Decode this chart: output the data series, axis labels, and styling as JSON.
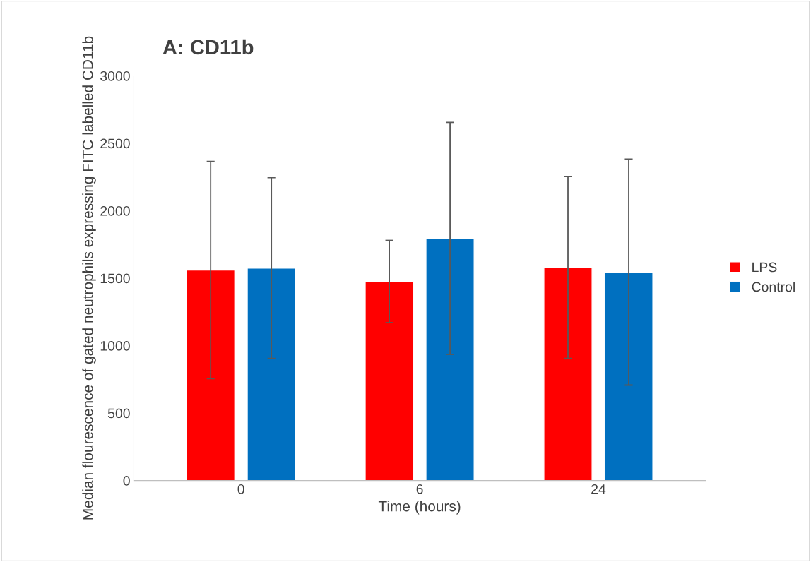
{
  "chart_data": {
    "type": "bar",
    "title": "A: CD11b",
    "xlabel": "Time (hours)",
    "ylabel": "Median flourescence of gated neutrophils expressing FITC labelled CD11b",
    "categories": [
      "0",
      "6",
      "24"
    ],
    "series": [
      {
        "name": "LPS",
        "color": "#ff0000",
        "values": [
          1560,
          1475,
          1580
        ],
        "errors": [
          805,
          305,
          675
        ]
      },
      {
        "name": "Control",
        "color": "#0070c0",
        "values": [
          1575,
          1795,
          1545
        ],
        "errors": [
          670,
          860,
          838
        ]
      }
    ],
    "ylim": [
      0,
      3000
    ],
    "yticks": [
      0,
      500,
      1000,
      1500,
      2000,
      2500,
      3000
    ],
    "grid": false,
    "legend": "right"
  }
}
